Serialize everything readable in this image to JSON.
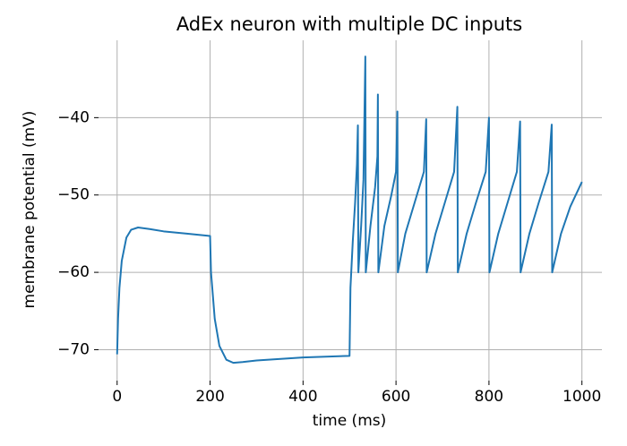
{
  "chart_data": {
    "type": "line",
    "title": "AdEx neuron with multiple DC inputs",
    "xlabel": "time (ms)",
    "ylabel": "membrane potential (mV)",
    "x": [
      0,
      2,
      5,
      10,
      20,
      30,
      45,
      70,
      100,
      150,
      200,
      202,
      210,
      220,
      235,
      250,
      270,
      300,
      400,
      500,
      502,
      507,
      512,
      516,
      518,
      519,
      525,
      530,
      534,
      535,
      545,
      555,
      560,
      561,
      562,
      575,
      590,
      600,
      603,
      604,
      620,
      640,
      660,
      665,
      666,
      685,
      705,
      725,
      732,
      733,
      752,
      772,
      793,
      800,
      801,
      820,
      840,
      860,
      867,
      868,
      887,
      907,
      928,
      935,
      936,
      955,
      975,
      1000
    ],
    "series": [
      {
        "name": "membrane potential",
        "color": "#1f77b4",
        "values": [
          -70.6,
          -66,
          -62,
          -58.5,
          -55.5,
          -54.5,
          -54.2,
          -54.4,
          -54.7,
          -55.0,
          -55.3,
          -60,
          -66,
          -69.5,
          -71.3,
          -71.7,
          -71.6,
          -71.4,
          -71.0,
          -70.8,
          -62,
          -56,
          -51,
          -46,
          -41.0,
          -60,
          -54,
          -48,
          -32.1,
          -60,
          -54,
          -49,
          -45,
          -37.0,
          -60,
          -54,
          -50,
          -47,
          -39.2,
          -60,
          -55,
          -51,
          -47,
          -40.2,
          -60,
          -55,
          -51,
          -47,
          -38.6,
          -60,
          -55,
          -51,
          -47,
          -40.0,
          -60,
          -55,
          -51,
          -47,
          -40.5,
          -60,
          -55,
          -51,
          -47,
          -40.9,
          -60,
          -55,
          -51.5,
          -48.3
        ]
      }
    ],
    "xlim": [
      -40,
      1043
    ],
    "ylim": [
      -74,
      -30
    ],
    "xticks": [
      0,
      200,
      400,
      600,
      800,
      1000
    ],
    "yticks": [
      {
        "value": -70,
        "label": "−70"
      },
      {
        "value": -60,
        "label": "−60"
      },
      {
        "value": -50,
        "label": "−50"
      },
      {
        "value": -40,
        "label": "−40"
      }
    ],
    "grid": true
  }
}
